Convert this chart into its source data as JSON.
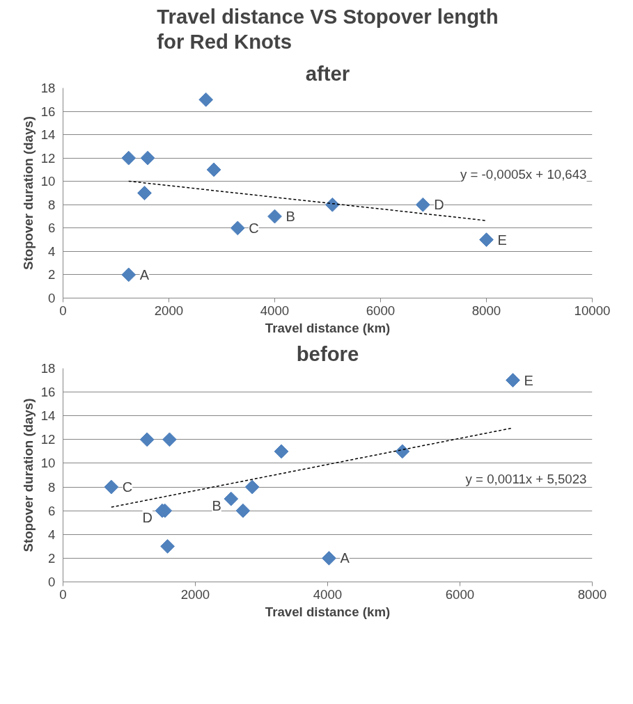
{
  "chart_data": [
    {
      "type": "scatter",
      "title": "Travel distance VS Stopover length\nfor Red Knots",
      "subtitle": "after",
      "xlabel": "Travel distance (km)",
      "ylabel": "Stopover duration (days)",
      "xlim": [
        0,
        10000
      ],
      "xticks": [
        0,
        2000,
        4000,
        6000,
        8000,
        10000
      ],
      "ylim": [
        0,
        18
      ],
      "yticks": [
        0,
        2,
        4,
        6,
        8,
        10,
        12,
        14,
        16,
        18
      ],
      "grid": "y",
      "marker": "diamond",
      "series": [
        {
          "color": "#4f81bd",
          "x": [
            1240,
            1600,
            1540,
            2700,
            2850,
            3300,
            4000,
            5090,
            6800,
            8000,
            1240
          ],
          "values": [
            12,
            12,
            9,
            17,
            11,
            6,
            7,
            8,
            8,
            5,
            2
          ]
        },
        {
          "type": "line",
          "color": "#000000",
          "line_style": "dashed",
          "marker": "none",
          "x": [
            1240,
            8000
          ],
          "values": [
            10.02,
            6.64
          ]
        }
      ],
      "annotations": [
        {
          "text": "A",
          "x": 1240,
          "y": 2
        },
        {
          "text": "C",
          "x": 3300,
          "y": 6
        },
        {
          "text": "B",
          "x": 4000,
          "y": 7
        },
        {
          "text": "D",
          "x": 6800,
          "y": 8
        },
        {
          "text": "E",
          "x": 8000,
          "y": 5
        },
        "y = -0,0005x + 10,643"
      ]
    },
    {
      "type": "scatter",
      "title": "before",
      "xlabel": "Travel distance (km)",
      "ylabel": "Stopover duration (days)",
      "xlim": [
        0,
        8000
      ],
      "xticks": [
        0,
        2000,
        4000,
        6000,
        8000
      ],
      "ylim": [
        0,
        18
      ],
      "yticks": [
        0,
        2,
        4,
        6,
        8,
        10,
        12,
        14,
        16,
        18
      ],
      "grid": "y",
      "marker": "diamond",
      "series": [
        {
          "color": "#4f81bd",
          "x": [
            730,
            1270,
            1610,
            1500,
            1540,
            1580,
            2540,
            2720,
            2860,
            3300,
            4020,
            5130,
            6800
          ],
          "values": [
            8,
            12,
            12,
            6,
            6,
            3,
            7,
            6,
            8,
            11,
            2,
            11,
            17
          ]
        },
        {
          "type": "line",
          "color": "#000000",
          "line_style": "dashed",
          "marker": "none",
          "x": [
            730,
            6800
          ],
          "values": [
            6.3,
            12.98
          ]
        }
      ],
      "annotations": [
        {
          "text": "C",
          "x": 730,
          "y": 8
        },
        {
          "text": "D",
          "x": 1500,
          "y": 6
        },
        {
          "text": "B",
          "x": 2540,
          "y": 7
        },
        {
          "text": "A",
          "x": 4020,
          "y": 2
        },
        {
          "text": "E",
          "x": 6800,
          "y": 17
        },
        "y = 0,0011x + 5,5023"
      ]
    }
  ]
}
